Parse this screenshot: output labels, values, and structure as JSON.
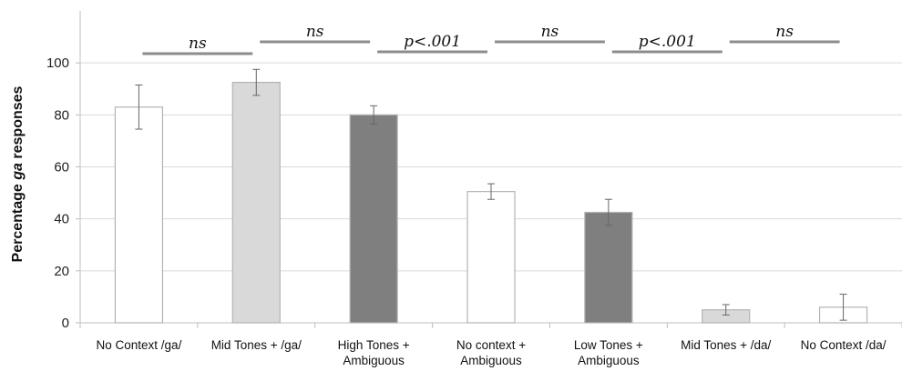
{
  "chart_data": {
    "type": "bar",
    "title": "",
    "xlabel": "",
    "ylabel": "Percentage ga responses",
    "ylabel_parts": [
      "Percentage ",
      "ga",
      " responses"
    ],
    "ylim": [
      0,
      100
    ],
    "yticks": [
      0,
      20,
      40,
      60,
      80,
      100
    ],
    "grid": true,
    "categories": [
      [
        "No Context /ga/"
      ],
      [
        "Mid Tones + /ga/"
      ],
      [
        "High Tones +",
        "Ambiguous"
      ],
      [
        "No context +",
        "Ambiguous"
      ],
      [
        "Low Tones +",
        "Ambiguous"
      ],
      [
        "Mid Tones + /da/"
      ],
      [
        "No Context /da/"
      ]
    ],
    "values": [
      83,
      92.5,
      80,
      50.5,
      42.5,
      5,
      6
    ],
    "error": [
      8.5,
      5,
      3.5,
      3,
      5,
      2,
      5
    ],
    "bar_colors": [
      "#ffffff",
      "#d9d9d9",
      "#7f7f7f",
      "#ffffff",
      "#7f7f7f",
      "#d9d9d9",
      "#ffffff"
    ],
    "significance": [
      {
        "label": "ns",
        "from": 0,
        "to": 1
      },
      {
        "label": "ns",
        "from": 1,
        "to": 2
      },
      {
        "label": "p<.001",
        "from": 2,
        "to": 3
      },
      {
        "label": "ns",
        "from": 3,
        "to": 4
      },
      {
        "label": "p<.001",
        "from": 4,
        "to": 5
      },
      {
        "label": "ns",
        "from": 5,
        "to": 6
      }
    ]
  }
}
